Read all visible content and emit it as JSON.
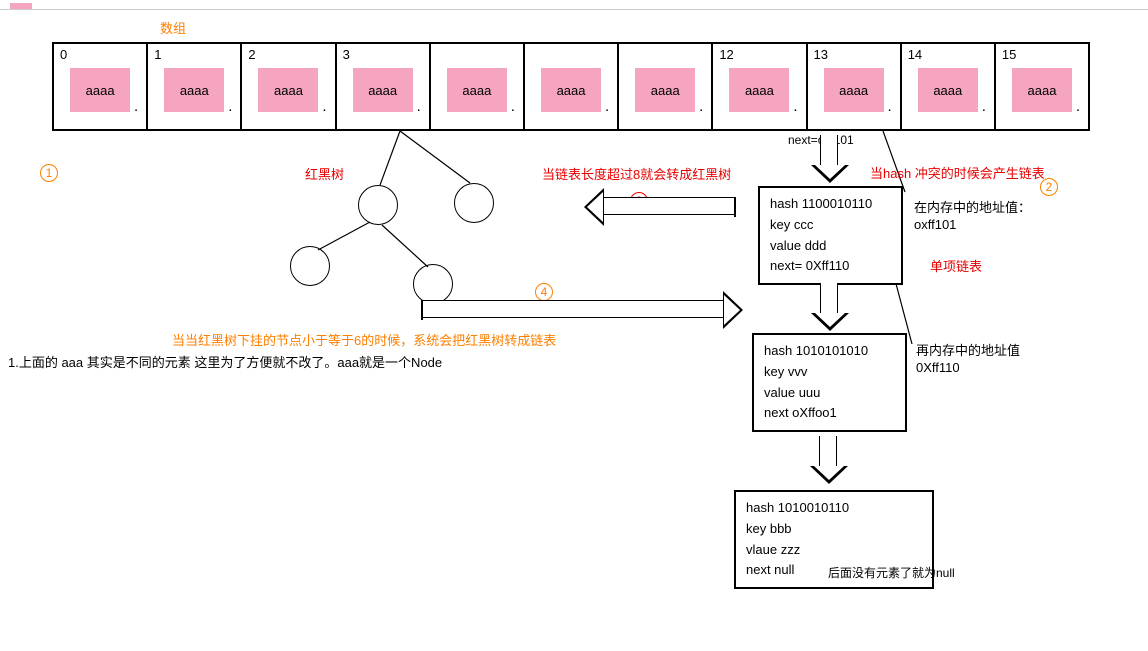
{
  "labels": {
    "array": "数组",
    "rbtree": "红黑树",
    "to_rbtree": "当链表长度超过8就会转成红黑树",
    "hash_conflict": "当hash 冲突的时候会产生链表",
    "addr1_label": "在内存中的地址值：",
    "addr1_value": "oxff101",
    "singly": "单项链表",
    "addr2_label": "再内存中的地址值",
    "addr2_value": "0Xff110",
    "rbtree_back": "当当红黑树下挂的节点小于等于6的时候，系统会把红黑树转成链表",
    "note": "1.上面的 aaa 其实是不同的元素 这里为了方便就不改了。aaa就是一个Node",
    "no_next": "后面没有元素了就为null",
    "next_ptr": "next=oxf101",
    "dot": "、"
  },
  "circles": {
    "c1": "1",
    "c2_red": "2",
    "c2_orange": "2",
    "c4": "4"
  },
  "array": {
    "cells": [
      {
        "idx": "0",
        "val": "aaaa"
      },
      {
        "idx": "1",
        "val": "aaaa"
      },
      {
        "idx": "2",
        "val": "aaaa"
      },
      {
        "idx": "3",
        "val": "aaaa"
      },
      {
        "idx": "",
        "val": "aaaa"
      },
      {
        "idx": "",
        "val": "aaaa"
      },
      {
        "idx": "",
        "val": "aaaa"
      },
      {
        "idx": "12",
        "val": "aaaa"
      },
      {
        "idx": "13",
        "val": "aaaa"
      },
      {
        "idx": "14",
        "val": "aaaa"
      },
      {
        "idx": "15",
        "val": "aaaa"
      }
    ]
  },
  "nodes": {
    "n1": {
      "hash": "hash 1100010110",
      "key": "key ccc",
      "value": "value ddd",
      "next": "next=  0Xff110"
    },
    "n2": {
      "hash": "hash 1010101010",
      "key": "key  vvv",
      "value": "value uuu",
      "next": "next oXffoo1"
    },
    "n3": {
      "hash": "hash 1010010110",
      "key": "key bbb",
      "value": "vlaue zzz",
      "next": "next null"
    }
  },
  "style": {
    "pink": "#f5a5c0",
    "orange": "#ff7f00",
    "red": "#e80000"
  }
}
